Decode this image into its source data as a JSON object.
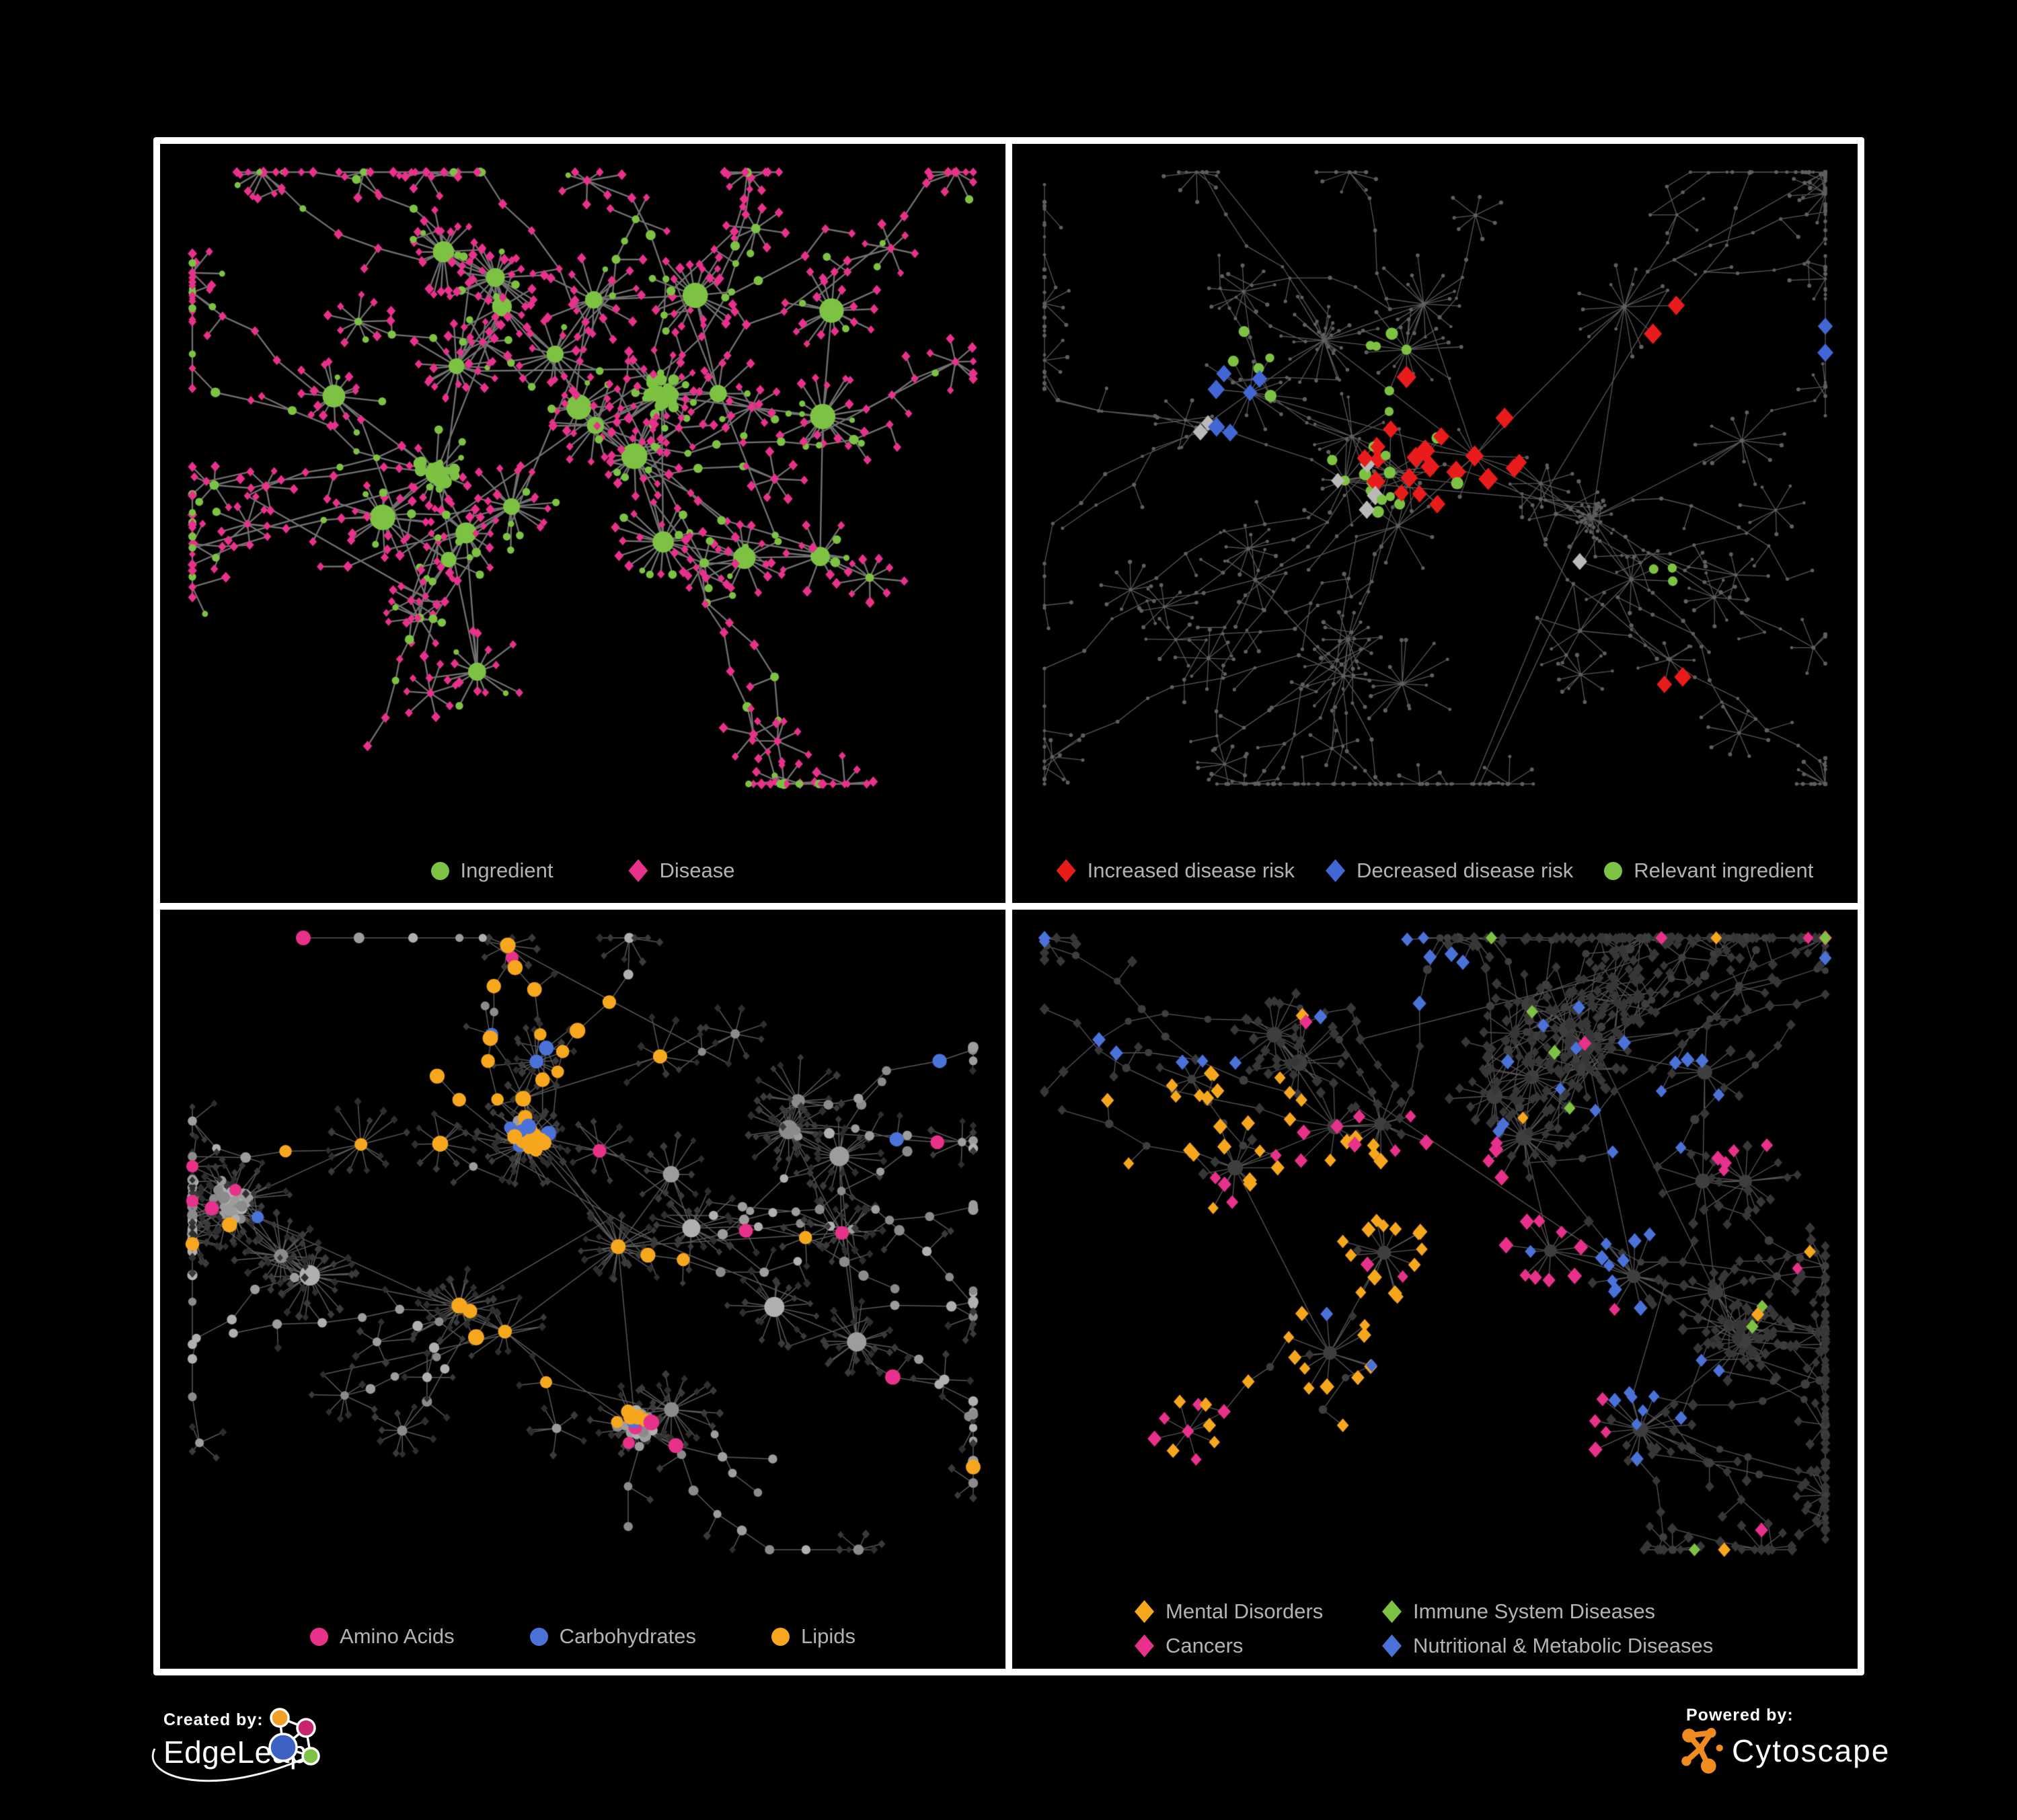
{
  "page": {
    "background": "#000000",
    "frame_color": "#ffffff"
  },
  "panels": [
    {
      "name": "ingredient-disease-network",
      "legend": [
        {
          "label": "Ingredient",
          "shape": "circle",
          "color": "#7dc242"
        },
        {
          "label": "Disease",
          "shape": "diamond",
          "color": "#e7318a"
        }
      ],
      "colors": {
        "edge": "#8c8c8c",
        "ingredient": "#7dc242",
        "disease": "#e7318a"
      }
    },
    {
      "name": "disease-risk-network",
      "legend": [
        {
          "label": "Increased disease risk",
          "shape": "diamond",
          "color": "#ea1b1b"
        },
        {
          "label": "Decreased disease risk",
          "shape": "diamond",
          "color": "#4267d5"
        },
        {
          "label": "Relevant ingredient",
          "shape": "circle",
          "color": "#7dc242"
        }
      ],
      "colors": {
        "edge": "#6e6e6e",
        "node": "#5f5f5f",
        "neutral_diamond": "#b9b9b9"
      }
    },
    {
      "name": "nutrient-class-network",
      "legend": [
        {
          "label": "Amino Acids",
          "shape": "circle",
          "color": "#e7318a"
        },
        {
          "label": "Carbohydrates",
          "shape": "circle",
          "color": "#4a72d8"
        },
        {
          "label": "Lipids",
          "shape": "circle",
          "color": "#f6a71e"
        }
      ],
      "colors": {
        "edge": "#a2a2a2",
        "ingredient": "#9e9e9e",
        "disease": "#343434"
      }
    },
    {
      "name": "disease-category-network",
      "legend": [
        {
          "label": "Mental Disorders",
          "shape": "diamond",
          "color": "#f6a71e"
        },
        {
          "label": "Immune System Diseases",
          "shape": "diamond",
          "color": "#7dc242"
        },
        {
          "label": "Cancers",
          "shape": "diamond",
          "color": "#e7318a"
        },
        {
          "label": "Nutritional & Metabolic Diseases",
          "shape": "diamond",
          "color": "#4a72d8"
        }
      ],
      "colors": {
        "edge": "#909090",
        "ingredient": "#3e3e3e",
        "disease": "#373737"
      }
    }
  ],
  "footer": {
    "created_by_label": "Created by:",
    "created_by_name": "EdgeLeap",
    "powered_by_label": "Powered by:",
    "powered_by_name": "Cytoscape"
  }
}
